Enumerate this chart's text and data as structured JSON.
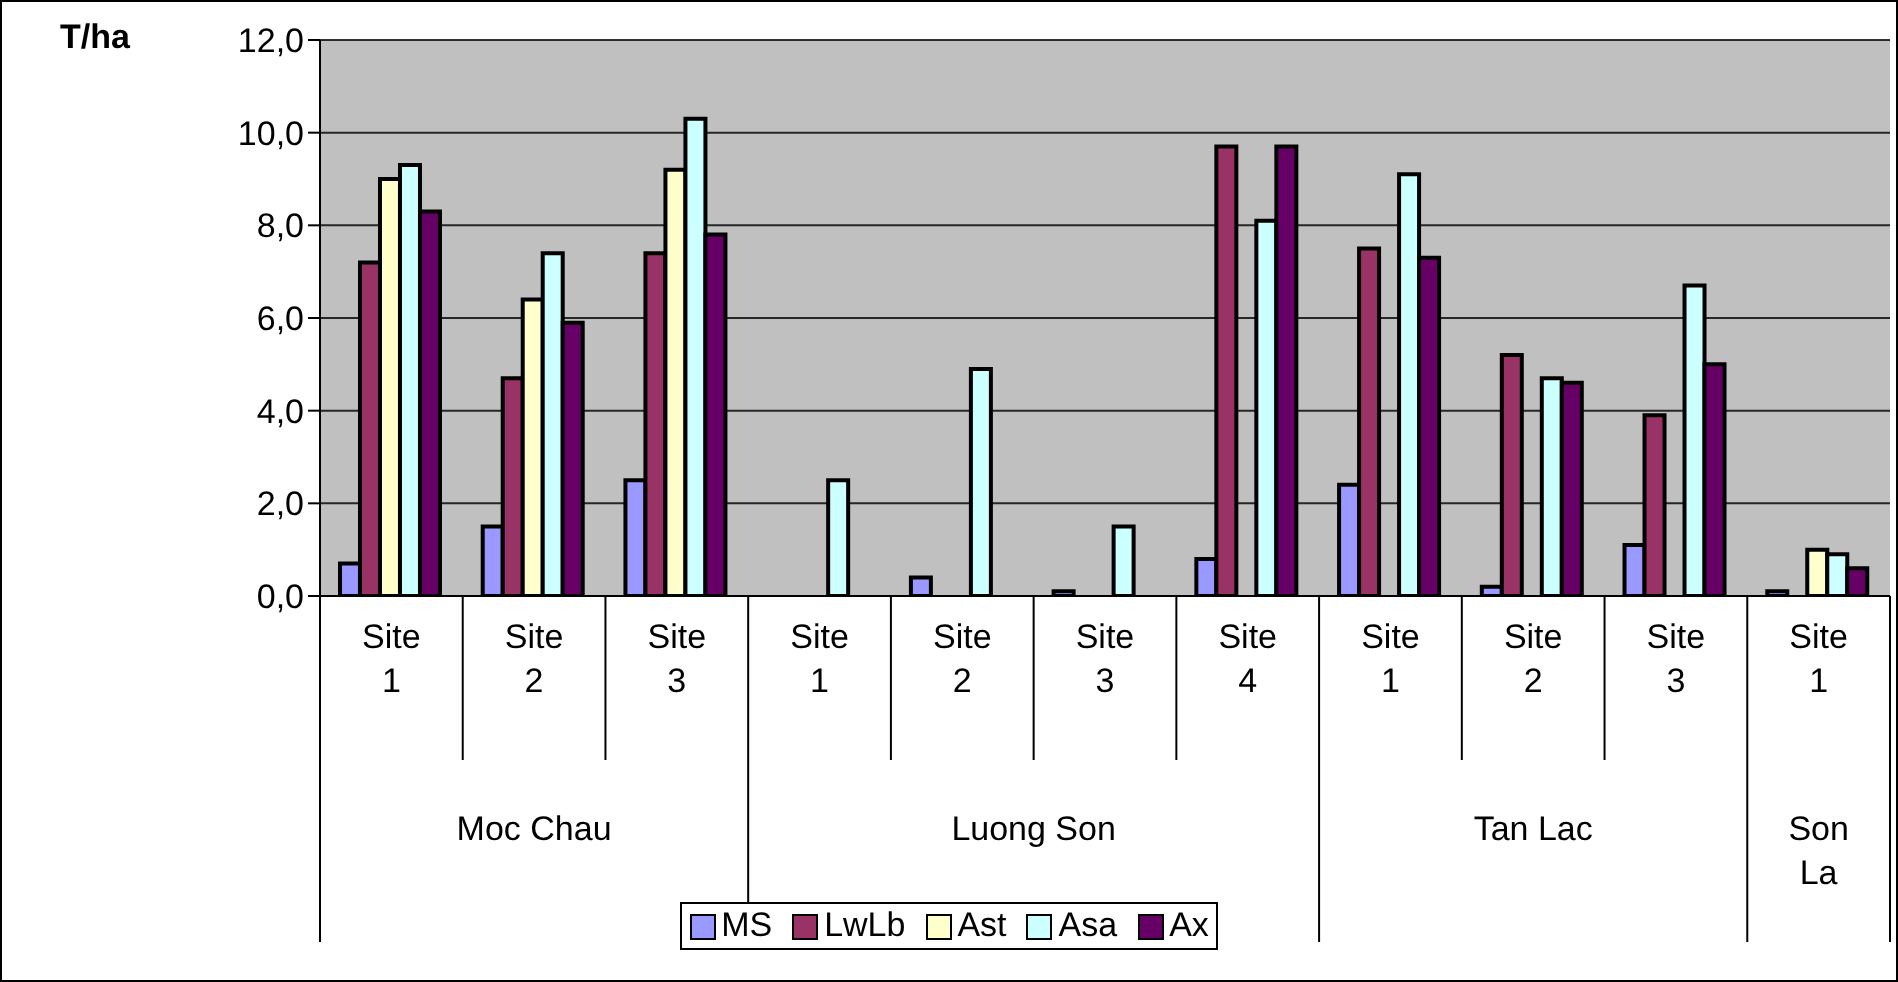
{
  "chart_data": {
    "type": "bar",
    "ylabel": "T/ha",
    "categories": [
      "Site 1",
      "Site 2",
      "Site 3",
      "Site 1",
      "Site 2",
      "Site 3",
      "Site 4",
      "Site 1",
      "Site 2",
      "Site 3",
      "Site 1"
    ],
    "annotations": [
      "Moc Chau",
      "Luong Son",
      "Tan Lac",
      "Son La"
    ],
    "series": [
      {
        "name": "MS",
        "color": "#9999ff",
        "values": [
          0.7,
          1.5,
          2.5,
          null,
          0.4,
          0.1,
          0.8,
          2.4,
          0.2,
          1.1,
          0.1
        ]
      },
      {
        "name": "LwLb",
        "color": "#993366",
        "values": [
          7.2,
          4.7,
          7.4,
          null,
          null,
          null,
          9.7,
          7.5,
          5.2,
          3.9,
          null
        ]
      },
      {
        "name": "Ast",
        "color": "#ffffcc",
        "values": [
          9.0,
          6.4,
          9.2,
          null,
          null,
          null,
          null,
          null,
          null,
          null,
          1.0
        ]
      },
      {
        "name": "Asa",
        "color": "#ccffff",
        "values": [
          9.3,
          7.4,
          10.3,
          2.5,
          4.9,
          1.5,
          8.1,
          9.1,
          4.7,
          6.7,
          0.9
        ]
      },
      {
        "name": "Ax",
        "color": "#660066",
        "values": [
          8.3,
          5.9,
          7.8,
          null,
          null,
          null,
          9.7,
          7.3,
          4.6,
          5.0,
          0.6
        ]
      }
    ],
    "ylim": [
      0,
      12
    ],
    "yticks": [
      {
        "value": 0,
        "label": "0,0"
      },
      {
        "value": 2,
        "label": "2,0"
      },
      {
        "value": 4,
        "label": "4,0"
      },
      {
        "value": 6,
        "label": "6,0"
      },
      {
        "value": 8,
        "label": "8,0"
      },
      {
        "value": 10,
        "label": "10,0"
      },
      {
        "value": 12,
        "label": "12,0"
      }
    ],
    "grid": "y",
    "legend": "bottom"
  }
}
